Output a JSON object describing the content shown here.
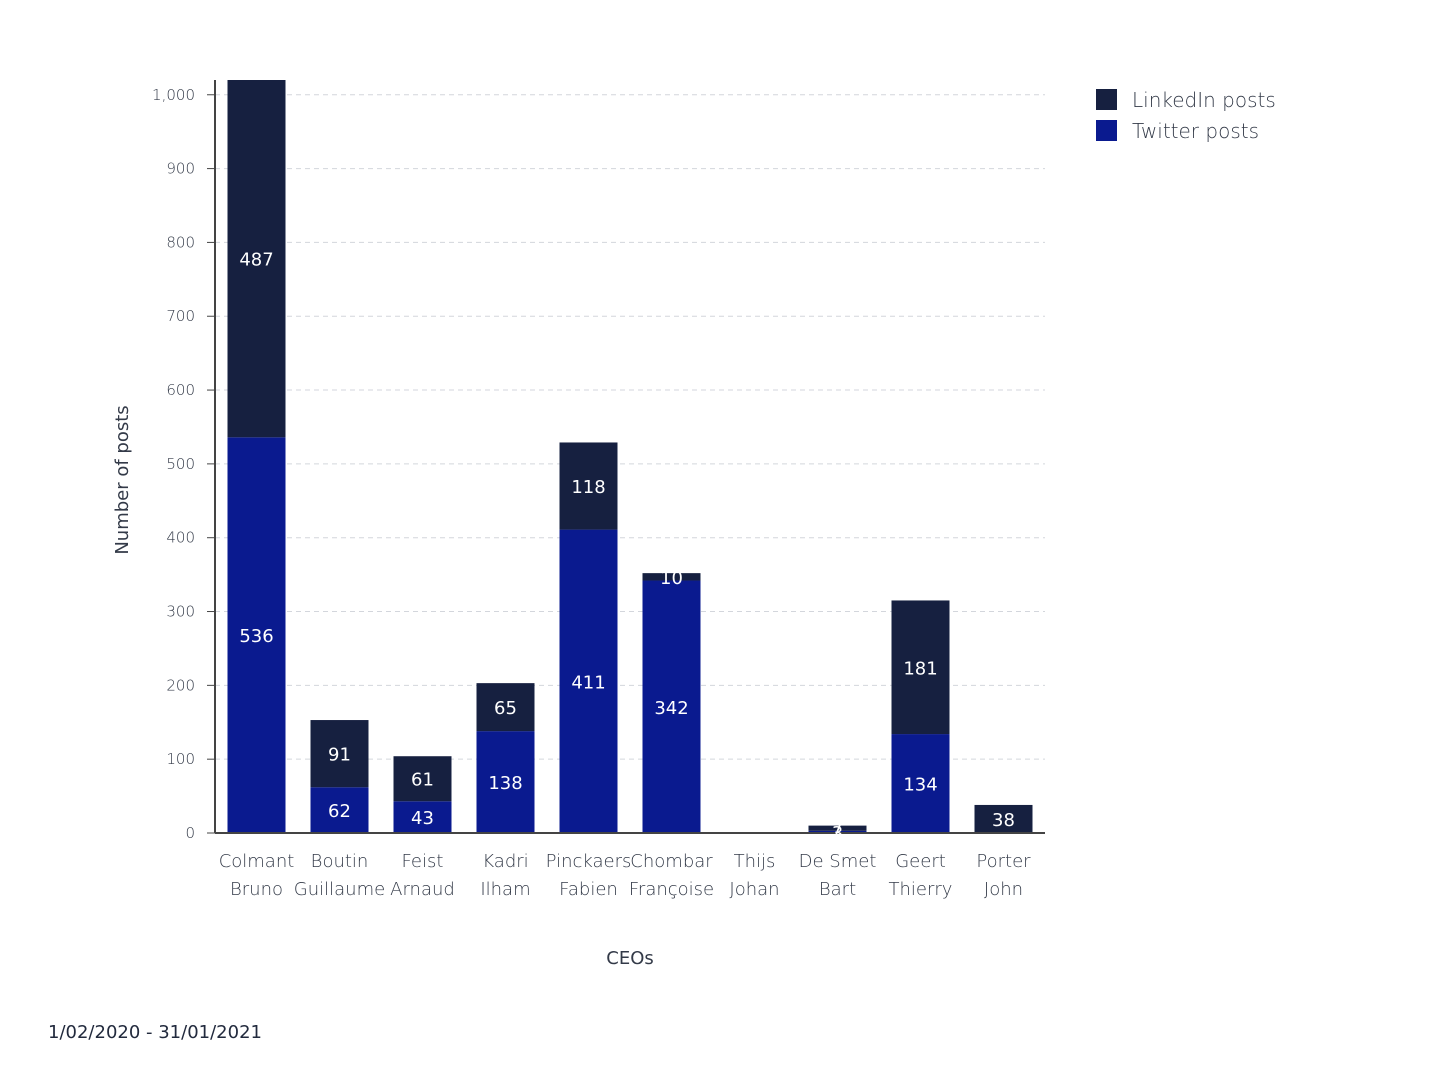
{
  "chart_data": {
    "type": "bar",
    "stacked": true,
    "title": "",
    "xlabel": "CEOs",
    "ylabel": "Number of posts",
    "ylim": [
      0,
      1020
    ],
    "yticks": [
      0,
      100,
      200,
      300,
      400,
      500,
      600,
      700,
      800,
      900,
      1000
    ],
    "ytick_labels": [
      "0",
      "100",
      "200",
      "300",
      "400",
      "500",
      "600",
      "700",
      "800",
      "900",
      "1,000"
    ],
    "grid": true,
    "legend_position": "top-right",
    "categories": [
      [
        "Colmant",
        "Bruno"
      ],
      [
        "Boutin",
        "Guillaume"
      ],
      [
        "Feist",
        "Arnaud"
      ],
      [
        "Kadri",
        "Ilham"
      ],
      [
        "Pinckaers",
        "Fabien"
      ],
      [
        "Chombar",
        "Françoise"
      ],
      [
        "Thijs",
        "Johan"
      ],
      [
        "De Smet",
        "Bart"
      ],
      [
        "Geert",
        "Thierry"
      ],
      [
        "Porter",
        "John"
      ]
    ],
    "series": [
      {
        "name": "Twitter posts",
        "color": "#0a1a8f",
        "values": [
          536,
          62,
          43,
          138,
          411,
          342,
          0,
          3,
          134,
          0
        ],
        "labels": [
          "536",
          "62",
          "43",
          "138",
          "411",
          "342",
          "",
          "3",
          "134",
          ""
        ]
      },
      {
        "name": "LinkedIn posts",
        "color": "#162040",
        "values": [
          487,
          91,
          61,
          65,
          118,
          10,
          0,
          7,
          181,
          38
        ],
        "labels": [
          "487",
          "91",
          "61",
          "65",
          "118",
          "10",
          "",
          "7",
          "181",
          "38"
        ]
      }
    ],
    "legend_order": [
      "LinkedIn posts",
      "Twitter posts"
    ]
  },
  "footnote": "1/02/2020 - 31/01/2021",
  "colors": {
    "twitter": "#0a1a8f",
    "linkedin": "#162040",
    "grid": "#d3d6dc",
    "axis": "#444444"
  }
}
